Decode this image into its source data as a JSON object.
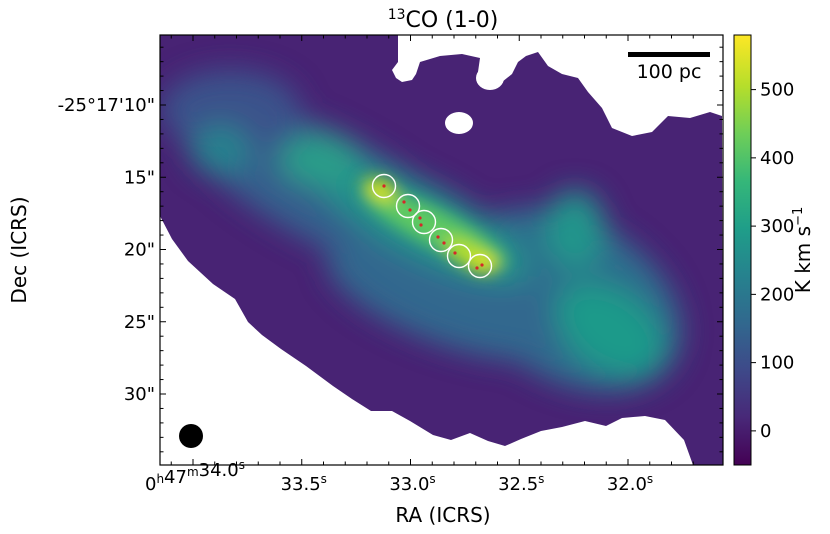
{
  "chart_data": {
    "type": "heatmap",
    "title": {
      "sup": "13",
      "text": "CO (1-0)"
    },
    "xlabel": "RA (ICRS)",
    "ylabel": "Dec (ICRS)",
    "x_ticks": [
      {
        "value": "34.0",
        "label": "0h47m34.0s"
      },
      {
        "value": "33.5",
        "label": "33.5s"
      },
      {
        "value": "33.0",
        "label": "33.0s"
      },
      {
        "value": "32.5",
        "label": "32.5s"
      },
      {
        "value": "32.0",
        "label": "32.0s"
      }
    ],
    "x_tick_parts": [
      {
        "a": "0",
        "s1": "h",
        "b": "47",
        "s2": "m",
        "c": "34.0",
        "s3": "s"
      },
      {
        "c": "33.5",
        "s3": "s"
      },
      {
        "c": "33.0",
        "s3": "s"
      },
      {
        "c": "32.5",
        "s3": "s"
      },
      {
        "c": "32.0",
        "s3": "s"
      }
    ],
    "y_ticks": [
      "-25°17'10\"",
      "15\"",
      "20\"",
      "25\"",
      "30\""
    ],
    "y_tick_values_arcsec": [
      10,
      15,
      20,
      25,
      30
    ],
    "colorbar": {
      "label": "K km s",
      "label_sup": "−1",
      "range": [
        -50,
        580
      ],
      "ticks": [
        0,
        100,
        200,
        300,
        400,
        500
      ],
      "colormap": "viridis"
    },
    "scalebar_label": "100 pc",
    "beam": "filled black circle, lower-left",
    "regions": {
      "shape": "circle",
      "color": "#ffffff",
      "count": 6,
      "markers_color": "#d62728"
    },
    "colors": {
      "viridis": [
        "#440154",
        "#482878",
        "#3e4989",
        "#31688e",
        "#26828e",
        "#1f9e89",
        "#35b779",
        "#6ece58",
        "#b5de2b",
        "#fde725"
      ]
    }
  }
}
